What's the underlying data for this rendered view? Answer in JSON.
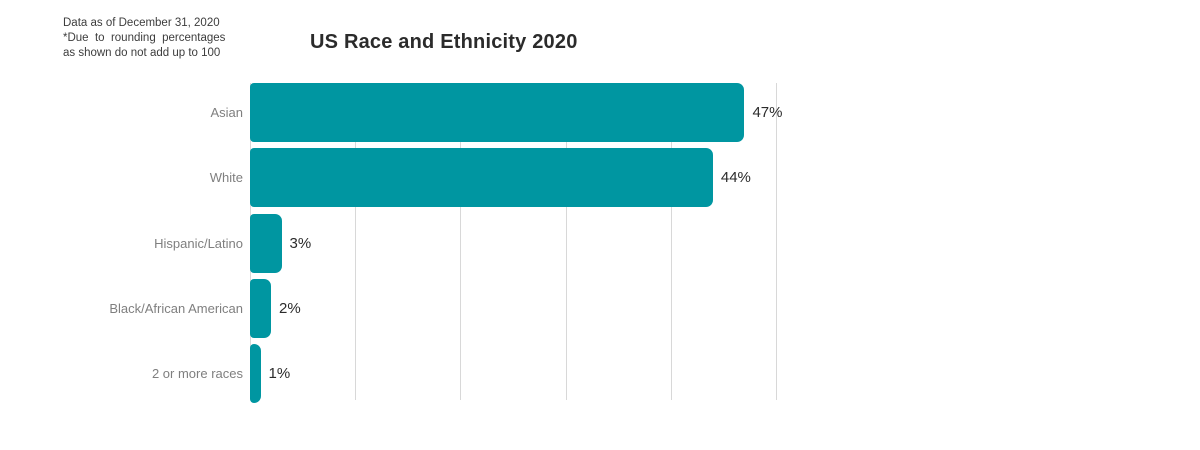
{
  "note": {
    "line1": "Data as of December 31, 2020",
    "line2": "*Due to rounding percentages",
    "line3": "as shown do not add up to 100"
  },
  "chart_data": {
    "type": "bar",
    "orientation": "horizontal",
    "title": "US Race and Ethnicity 2020",
    "categories": [
      "Asian",
      "White",
      "Hispanic/Latino",
      "Black/African American",
      "2 or more races"
    ],
    "values": [
      47,
      44,
      3,
      2,
      1
    ],
    "value_labels": [
      "47%",
      "44%",
      "3%",
      "2%",
      "1%"
    ],
    "xlabel": "",
    "ylabel": "",
    "xlim": [
      0,
      50
    ],
    "gridline_step": 10,
    "grid": true,
    "legend": false,
    "colors": {
      "bar": "#0096a1",
      "gridline": "#d8d8d8",
      "category_label": "#7f7f7f",
      "value_label": "#2b2b2b",
      "title": "#2b2b2b",
      "note": "#3d3d3d",
      "background": "#ffffff"
    }
  }
}
